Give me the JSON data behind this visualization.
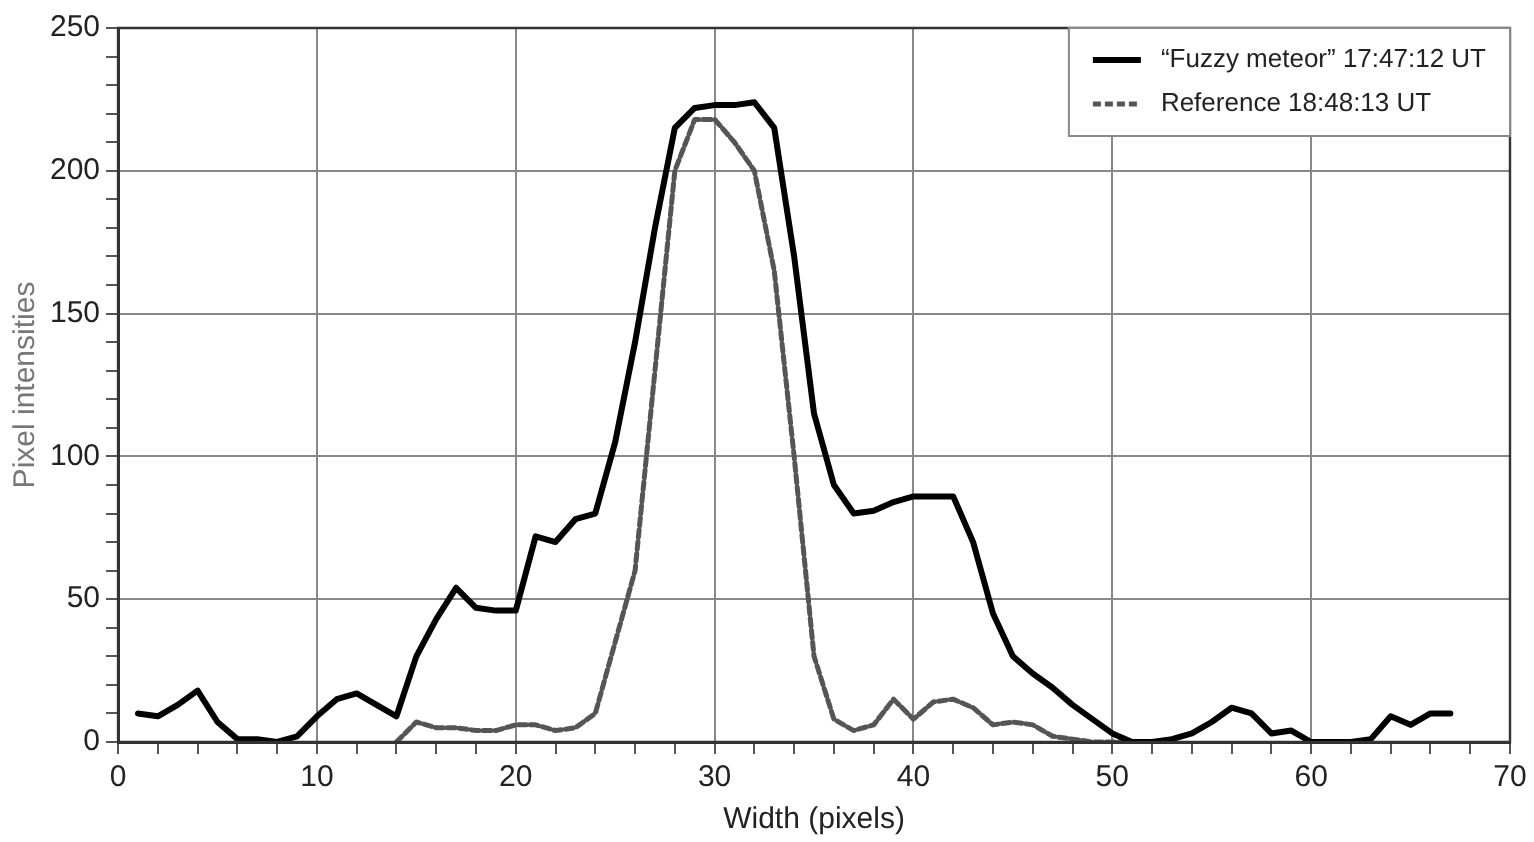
{
  "chart_data": {
    "type": "line",
    "xlabel": "Width (pixels)",
    "ylabel": "Pixel intensities",
    "xlim": [
      0,
      70
    ],
    "xticks": [
      0,
      {
        "value": 2,
        "label": null
      },
      {
        "value": 4,
        "label": null
      },
      {
        "value": 6,
        "label": null
      },
      {
        "value": 8,
        "label": null
      },
      10,
      {
        "value": 12,
        "label": null
      },
      {
        "value": 14,
        "label": null
      },
      {
        "value": 16,
        "label": null
      },
      {
        "value": 18,
        "label": null
      },
      20,
      {
        "value": 22,
        "label": null
      },
      {
        "value": 24,
        "label": null
      },
      {
        "value": 26,
        "label": null
      },
      {
        "value": 28,
        "label": null
      },
      30,
      {
        "value": 32,
        "label": null
      },
      {
        "value": 34,
        "label": null
      },
      {
        "value": 36,
        "label": null
      },
      {
        "value": 38,
        "label": null
      },
      40,
      {
        "value": 42,
        "label": null
      },
      {
        "value": 44,
        "label": null
      },
      {
        "value": 46,
        "label": null
      },
      {
        "value": 48,
        "label": null
      },
      50,
      {
        "value": 52,
        "label": null
      },
      {
        "value": 54,
        "label": null
      },
      {
        "value": 56,
        "label": null
      },
      {
        "value": 58,
        "label": null
      },
      60,
      {
        "value": 62,
        "label": null
      },
      {
        "value": 64,
        "label": null
      },
      {
        "value": 66,
        "label": null
      },
      {
        "value": 68,
        "label": null
      },
      70
    ],
    "ylim": [
      0,
      250
    ],
    "yticks": [
      0,
      {
        "value": 10,
        "label": null
      },
      {
        "value": 20,
        "label": null
      },
      {
        "value": 30,
        "label": null
      },
      {
        "value": 40,
        "label": null
      },
      50,
      {
        "value": 60,
        "label": null
      },
      {
        "value": 70,
        "label": null
      },
      {
        "value": 80,
        "label": null
      },
      {
        "value": 90,
        "label": null
      },
      100,
      {
        "value": 110,
        "label": null
      },
      {
        "value": 120,
        "label": null
      },
      {
        "value": 130,
        "label": null
      },
      {
        "value": 140,
        "label": null
      },
      150,
      {
        "value": 160,
        "label": null
      },
      {
        "value": 170,
        "label": null
      },
      {
        "value": 180,
        "label": null
      },
      {
        "value": 190,
        "label": null
      },
      200,
      {
        "value": 210,
        "label": null
      },
      {
        "value": 220,
        "label": null
      },
      {
        "value": 230,
        "label": null
      },
      {
        "value": 240,
        "label": null
      },
      250
    ],
    "grid": true,
    "legend": "top right",
    "marker": "none",
    "series": [
      {
        "name": "“Fuzzy meteor” 17:47:12 UT",
        "color": "#000000",
        "line_style": "solid",
        "x": [
          1,
          2,
          3,
          4,
          5,
          6,
          7,
          8,
          9,
          10,
          11,
          12,
          13,
          14,
          15,
          16,
          17,
          18,
          19,
          20,
          21,
          22,
          23,
          24,
          25,
          26,
          27,
          28,
          29,
          30,
          31,
          32,
          33,
          34,
          35,
          36,
          37,
          38,
          39,
          40,
          41,
          42,
          43,
          44,
          45,
          46,
          47,
          48,
          49,
          50,
          51,
          52,
          53,
          54,
          55,
          56,
          57,
          58,
          59,
          60,
          61,
          62,
          63,
          64,
          65,
          66,
          67
        ],
        "values": [
          10,
          9,
          13,
          18,
          7,
          1,
          1,
          0,
          2,
          9,
          15,
          17,
          13,
          9,
          30,
          43,
          54,
          47,
          46,
          46,
          72,
          70,
          78,
          80,
          105,
          140,
          180,
          215,
          222,
          223,
          223,
          224,
          215,
          170,
          115,
          90,
          80,
          81,
          84,
          86,
          86,
          86,
          70,
          45,
          30,
          24,
          19,
          13,
          8,
          3,
          0,
          0,
          1,
          3,
          7,
          12,
          10,
          3,
          4,
          0,
          0,
          0,
          1,
          9,
          6,
          10,
          10
        ]
      },
      {
        "name": "Reference 18:48:13 UT",
        "color": "#555555",
        "line_style": "dashed",
        "x": [
          14,
          15,
          16,
          17,
          18,
          19,
          20,
          21,
          22,
          23,
          24,
          25,
          26,
          27,
          28,
          29,
          30,
          31,
          32,
          33,
          34,
          35,
          36,
          37,
          38,
          39,
          40,
          41,
          42,
          43,
          44,
          45,
          46,
          47,
          48,
          49,
          50,
          51
        ],
        "values": [
          0,
          7,
          5,
          5,
          4,
          4,
          6,
          6,
          4,
          5,
          10,
          35,
          60,
          130,
          200,
          218,
          218,
          210,
          200,
          165,
          100,
          30,
          8,
          4,
          6,
          15,
          8,
          14,
          15,
          12,
          6,
          7,
          6,
          2,
          1,
          0,
          0,
          0
        ]
      }
    ]
  }
}
